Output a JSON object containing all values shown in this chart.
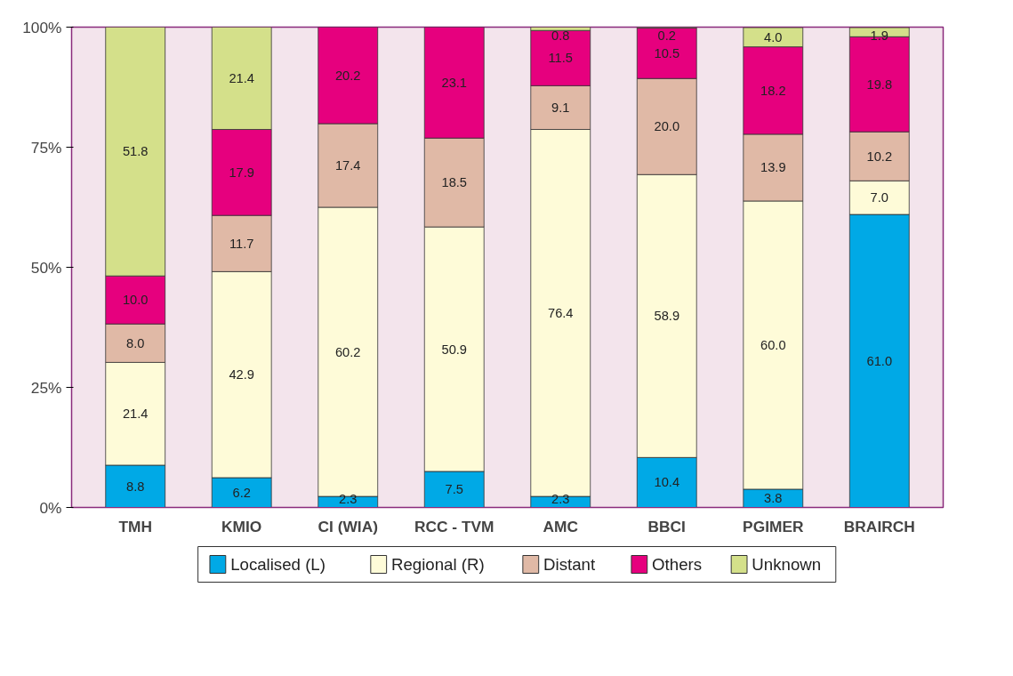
{
  "chart_data": {
    "type": "bar",
    "stacked": true,
    "legend": "bottom",
    "grid": false,
    "categories": [
      "TMH",
      "KMIO",
      "CI (WIA)",
      "RCC - TVM",
      "AMC",
      "BBCI",
      "PGIMER",
      "BRAIRCH"
    ],
    "ylim": [
      0,
      100
    ],
    "yticks": [
      {
        "value": 0,
        "label": "0%"
      },
      {
        "value": 25,
        "label": "25%"
      },
      {
        "value": 50,
        "label": "50%"
      },
      {
        "value": 75,
        "label": "75%"
      },
      {
        "value": 100,
        "label": "100%"
      }
    ],
    "series": [
      {
        "name": "Localised (L)",
        "color": "#00a9e6",
        "values": [
          8.8,
          6.2,
          2.3,
          7.5,
          2.3,
          10.4,
          3.8,
          61.0
        ],
        "value_labels": [
          "8.8",
          "6.2",
          "2.3",
          "7.5",
          "2.3",
          "10.4",
          "3.8",
          "61.0"
        ]
      },
      {
        "name": "Regional (R)",
        "color": "#fefbd8",
        "values": [
          21.4,
          42.9,
          60.2,
          50.9,
          76.4,
          58.9,
          60.0,
          7.0
        ],
        "value_labels": [
          "21.4",
          "42.9",
          "60.2",
          "50.9",
          "76.4",
          "58.9",
          "60.0",
          "7.0"
        ]
      },
      {
        "name": "Distant",
        "color": "#e0b9a6",
        "values": [
          8.0,
          11.7,
          17.4,
          18.5,
          9.1,
          20.0,
          13.9,
          10.2
        ],
        "value_labels": [
          "8.0",
          "11.7",
          "17.4",
          "18.5",
          "9.1",
          "20.0",
          "13.9",
          "10.2"
        ]
      },
      {
        "name": "Others",
        "color": "#e6007e",
        "values": [
          10.0,
          17.9,
          20.2,
          23.1,
          11.5,
          10.5,
          18.2,
          19.8
        ],
        "value_labels": [
          "10.0",
          "17.9",
          "20.2",
          "23.1",
          "11.5",
          "10.5",
          "18.2",
          "19.8"
        ]
      },
      {
        "name": "Unknown",
        "color": "#d4e08a",
        "values": [
          51.8,
          21.4,
          null,
          null,
          0.8,
          0.2,
          4.0,
          1.9
        ],
        "value_labels": [
          "51.8",
          "21.4",
          null,
          null,
          "0.8",
          "0.2",
          "4.0",
          "1.9"
        ]
      }
    ]
  }
}
